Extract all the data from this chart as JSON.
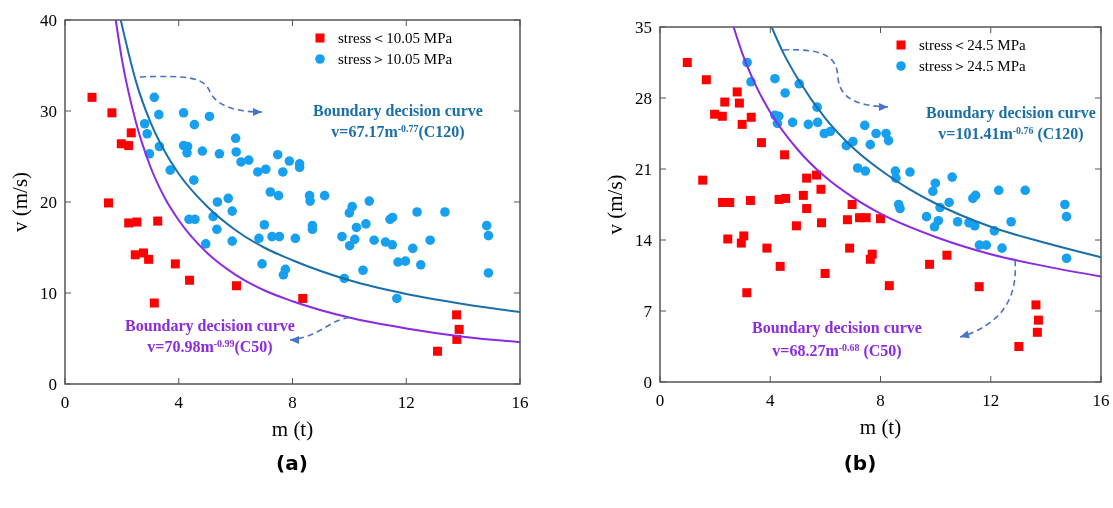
{
  "chart_data": [
    {
      "type": "scatter",
      "title": "(a)",
      "xlabel": "m (t)",
      "ylabel": "v (m/s)",
      "xlim": [
        0,
        16
      ],
      "ylim": [
        0,
        40
      ],
      "xticks": [
        0,
        4,
        8,
        12,
        16
      ],
      "yticks": [
        0,
        10,
        20,
        30,
        40
      ],
      "legend": "top right",
      "annotations": [
        "Boundary decision curve",
        "v=67.17m$^{-0.77}$(C120)",
        {
          "text": "Boundary decision curve",
          "x": 10,
          "y": 7.3
        },
        "v=70.98m$^{-0.99}$(C50)"
      ],
      "series": [
        {
          "name": "stress＜10.05 MPa",
          "marker": "square",
          "color": "#ff0000",
          "x": [
            0.95,
            1.65,
            2.33,
            1.98,
            2.24,
            1.53,
            2.24,
            2.53,
            3.26,
            2.47,
            2.76,
            2.94,
            3.88,
            4.38,
            3.14,
            6.03,
            8.36,
            13.77,
            13.86,
            13.78,
            13.1
          ],
          "values": [
            31.5,
            29.8,
            27.6,
            26.4,
            26.2,
            19.9,
            17.7,
            17.8,
            17.9,
            14.2,
            14.4,
            13.7,
            13.2,
            11.4,
            8.9,
            10.8,
            9.4,
            7.6,
            6.0,
            4.9,
            3.6
          ]
        },
        {
          "name": "stress＞10.05 MPa",
          "marker": "circle",
          "color": "#18a0f0",
          "x": [
            3.14,
            3.3,
            4.17,
            5.08,
            4.55,
            2.8,
            2.89,
            2.97,
            3.32,
            4.17,
            4.31,
            4.29,
            4.83,
            5.43,
            6.0,
            6.02,
            6.19,
            6.46,
            3.7,
            4.53,
            5.36,
            5.74,
            5.88,
            5.21,
            4.36,
            4.57,
            5.34,
            4.95,
            5.88,
            7.48,
            7.89,
            8.25,
            8.25,
            6.78,
            7.06,
            7.66,
            7.22,
            7.51,
            7.01,
            6.82,
            7.28,
            7.54,
            8.1,
            6.93,
            7.75,
            7.68,
            8.6,
            8.62,
            9.13,
            8.7,
            8.7,
            10.1,
            10.0,
            10.7,
            10.25,
            10.58,
            9.74,
            10.19,
            10.01,
            10.87,
            11.27,
            11.51,
            11.43,
            11.52,
            12.23,
            12.38,
            12.84,
            13.36,
            11.71,
            11.97,
            12.51,
            10.48,
            9.82,
            11.67,
            14.83,
            14.89,
            14.89
          ],
          "values": [
            31.5,
            29.6,
            29.8,
            29.4,
            28.5,
            28.6,
            27.5,
            25.3,
            26.1,
            26.2,
            26.1,
            25.4,
            25.6,
            25.3,
            27.0,
            25.5,
            24.4,
            24.6,
            23.5,
            22.4,
            20.0,
            20.4,
            19.0,
            18.4,
            18.1,
            18.1,
            17.0,
            15.4,
            15.7,
            25.2,
            24.5,
            24.2,
            23.8,
            23.3,
            23.6,
            23.3,
            21.1,
            20.7,
            17.5,
            16.0,
            16.2,
            16.2,
            16.0,
            13.2,
            12.6,
            12.0,
            20.7,
            20.1,
            20.7,
            17.4,
            17.0,
            19.5,
            18.8,
            20.1,
            17.2,
            17.6,
            16.2,
            15.9,
            15.2,
            15.8,
            15.6,
            15.3,
            18.1,
            18.3,
            14.9,
            18.9,
            15.8,
            18.9,
            13.4,
            13.5,
            13.1,
            12.5,
            11.6,
            9.4,
            17.4,
            16.3,
            12.2
          ]
        },
        {
          "type": "line",
          "color": "#1b6fa8",
          "x": [
            1.96,
            2.5,
            3,
            3.5,
            4,
            5,
            6,
            7,
            8,
            10,
            12,
            14,
            16
          ],
          "values": [
            40,
            33.2,
            28.8,
            25.6,
            23.1,
            19.5,
            16.9,
            15,
            13.6,
            11.4,
            9.9,
            8.8,
            7.9
          ]
        },
        {
          "type": "line",
          "color": "#8a2be2",
          "x": [
            1.785,
            2,
            2.5,
            3,
            3.5,
            4,
            5,
            6,
            7,
            8,
            10,
            12,
            14,
            16
          ],
          "values": [
            40,
            35.7,
            28.7,
            23.9,
            20.5,
            18,
            14.4,
            12,
            10.3,
            9.1,
            7.3,
            6.1,
            5.2,
            4.6
          ]
        }
      ]
    },
    {
      "type": "scatter",
      "title": "(b)",
      "xlabel": "m (t)",
      "ylabel": "v (m/s)",
      "xlim": [
        0,
        16
      ],
      "ylim": [
        0,
        35
      ],
      "xticks": [
        0,
        4,
        8,
        12,
        16
      ],
      "yticks": [
        0,
        7,
        14,
        21,
        28,
        35
      ],
      "legend": "top right",
      "annotations": [
        "Boundary decision curve",
        "v=101.41m$^{-0.76}$ (C120)",
        "Boundary decision curve",
        "v=68.27m$^{-0.68}$ (C50)"
      ],
      "series": [
        {
          "name": "stress＜24.5 MPa",
          "marker": "square",
          "color": "#ff0000",
          "x": [
            0.99,
            1.68,
            2.8,
            2.35,
            2.88,
            1.98,
            2.26,
            2.98,
            3.31,
            3.68,
            4.52,
            1.55,
            5.32,
            5.68,
            5.84,
            2.27,
            2.53,
            3.28,
            4.32,
            4.56,
            5.2,
            5.32,
            6.97,
            6.8,
            7.24,
            7.48,
            8.0,
            5.86,
            4.95,
            2.46,
            3.04,
            2.95,
            3.88,
            6.88,
            7.7,
            7.63,
            4.36,
            5.99,
            3.15,
            10.41,
            9.78,
            8.32,
            11.58,
            13.64,
            13.73,
            13.69,
            13.02
          ],
          "values": [
            31.5,
            29.8,
            28.6,
            27.6,
            27.5,
            26.4,
            26.2,
            25.4,
            26.1,
            23.6,
            22.4,
            19.9,
            20.1,
            20.4,
            19.0,
            17.7,
            17.7,
            17.9,
            18.0,
            18.1,
            18.4,
            17.1,
            17.5,
            16.0,
            16.2,
            16.2,
            16.1,
            15.7,
            15.4,
            14.1,
            14.4,
            13.7,
            13.2,
            13.2,
            12.6,
            12.1,
            11.4,
            10.7,
            8.8,
            12.5,
            11.6,
            9.5,
            9.4,
            7.6,
            6.1,
            4.9,
            3.5
          ]
        },
        {
          "name": "stress＞24.5 MPa",
          "marker": "circle",
          "color": "#18a0f0",
          "x": [
            3.16,
            3.3,
            4.17,
            5.05,
            4.54,
            5.7,
            4.17,
            4.31,
            4.26,
            4.81,
            5.38,
            5.72,
            5.96,
            6.18,
            6.76,
            7.0,
            7.43,
            7.63,
            7.84,
            7.17,
            7.45,
            8.2,
            8.29,
            8.54,
            8.56,
            9.07,
            8.66,
            8.71,
            9.99,
            9.9,
            10.6,
            10.49,
            10.16,
            9.67,
            10.1,
            9.96,
            10.8,
            11.21,
            11.42,
            11.35,
            11.45,
            12.29,
            12.13,
            12.74,
            13.25,
            11.59,
            11.84,
            12.41,
            14.69,
            14.75,
            14.75
          ],
          "values": [
            31.5,
            29.6,
            29.9,
            29.4,
            28.5,
            27.1,
            26.3,
            26.2,
            25.5,
            25.6,
            25.4,
            25.6,
            24.5,
            24.7,
            23.3,
            23.7,
            25.3,
            23.4,
            24.5,
            21.1,
            20.8,
            24.5,
            23.8,
            20.8,
            20.1,
            20.7,
            17.5,
            17.1,
            19.6,
            18.8,
            20.2,
            17.7,
            17.2,
            16.3,
            15.9,
            15.3,
            15.8,
            15.7,
            15.4,
            18.1,
            18.4,
            18.9,
            14.9,
            15.8,
            18.9,
            13.5,
            13.5,
            13.2,
            17.5,
            16.3,
            12.2
          ]
        },
        {
          "type": "line",
          "color": "#1b6fa8",
          "x": [
            4.05,
            4.5,
            5,
            6,
            7,
            8,
            9,
            10,
            12,
            14,
            16
          ],
          "values": [
            35,
            32.3,
            29.9,
            26,
            23.1,
            20.9,
            19.1,
            17.6,
            15.3,
            13.7,
            12.3
          ]
        },
        {
          "type": "line",
          "color": "#8a2be2",
          "x": [
            2.67,
            3,
            3.5,
            4,
            5,
            6,
            7,
            8,
            10,
            12,
            14,
            16
          ],
          "values": [
            35,
            32.3,
            29.1,
            26.6,
            22.9,
            20.2,
            18.2,
            16.6,
            14.3,
            12.6,
            11.4,
            10.4
          ]
        }
      ]
    }
  ]
}
